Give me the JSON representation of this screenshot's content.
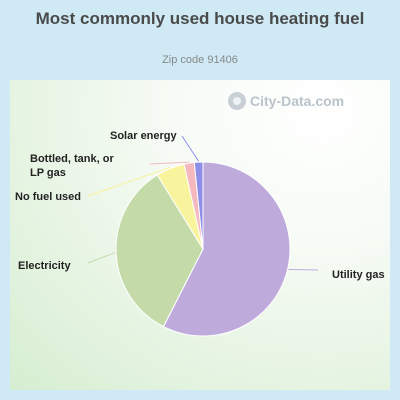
{
  "title": "Most commonly used house heating fuel",
  "subtitle": "Zip code 91406",
  "watermark": "City-Data.com",
  "chart_data": {
    "type": "pie",
    "title": "Most commonly used house heating fuel",
    "subtitle": "Zip code 91406",
    "start_angle_deg": 0,
    "slices": [
      {
        "label": "Utility gas",
        "value": 57.5,
        "color": "#bfaadc"
      },
      {
        "label": "Electricity",
        "value": 33.7,
        "color": "#c4dba9"
      },
      {
        "label": "No fuel used",
        "value": 5.3,
        "color": "#f8f49e"
      },
      {
        "label": "Bottled, tank, or LP gas",
        "value": 1.9,
        "color": "#f4b8bf"
      },
      {
        "label": "Solar energy",
        "value": 1.6,
        "color": "#8c8ee8"
      }
    ]
  }
}
